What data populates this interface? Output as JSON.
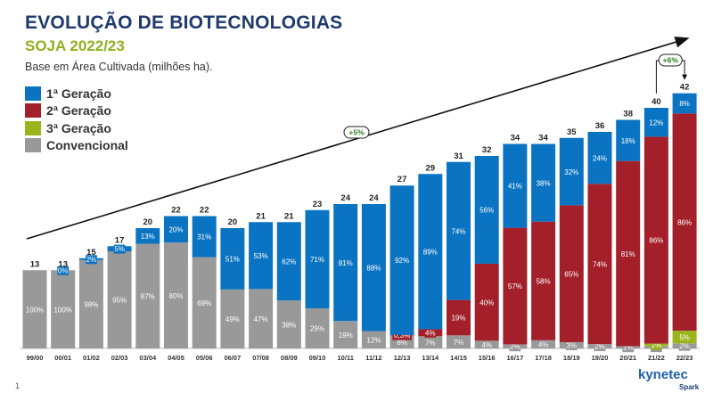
{
  "slide": {
    "title": "EVOLUÇÃO DE BIOTECNOLOGIAS",
    "subtitle": "SOJA 2022/23",
    "note": "Base em Área Cultivada (milhões ha).",
    "page_number": "1",
    "brand": "kynetec",
    "brand_sub": "Spark"
  },
  "colors": {
    "primeira": "#0a74c2",
    "segunda": "#a3202a",
    "terceira": "#9ab51b",
    "convencional": "#999999",
    "title": "#1f3a6e",
    "subtitle": "#8fb01e"
  },
  "chart_data": {
    "type": "bar",
    "stacked": true,
    "categories": [
      "99/00",
      "00/01",
      "01/02",
      "02/03",
      "03/04",
      "04/05",
      "05/06",
      "06/07",
      "07/08",
      "08/09",
      "09/10",
      "10/11",
      "11/12",
      "12/13",
      "13/14",
      "14/15",
      "15/16",
      "16/17",
      "17/18",
      "18/19",
      "19/20",
      "20/21",
      "21/22",
      "22/23"
    ],
    "totals": [
      13,
      13,
      15,
      17,
      20,
      22,
      22,
      20,
      21,
      21,
      23,
      24,
      24,
      27,
      29,
      31,
      32,
      34,
      34,
      35,
      36,
      38,
      40,
      42
    ],
    "ylabel": "",
    "series": [
      {
        "name": "Convencional",
        "color_key": "convencional",
        "values": [
          13,
          13,
          14.7,
          16.15,
          17.4,
          17.6,
          15.18,
          9.8,
          9.87,
          7.98,
          6.67,
          4.56,
          2.88,
          2.16,
          2.03,
          2.17,
          1.28,
          0.68,
          1.36,
          1.05,
          0.72,
          0.38,
          0.4,
          0.84
        ],
        "labels": [
          "100%",
          "100%",
          "98%",
          "95%",
          "87%",
          "80%",
          "69%",
          "49%",
          "47%",
          "38%",
          "29%",
          "19%",
          "12%",
          "8%",
          "7%",
          "7%",
          "4%",
          "2%",
          "4%",
          "3%",
          "2%",
          "1%",
          "1%",
          "2%"
        ]
      },
      {
        "name": "3ª Geração",
        "color_key": "terceira",
        "values": [
          0,
          0,
          0,
          0,
          0,
          0,
          0,
          0,
          0,
          0,
          0,
          0,
          0,
          0,
          0,
          0,
          0,
          0,
          0,
          0,
          0,
          0,
          0.4,
          2.1
        ],
        "labels": [
          "",
          "",
          "",
          "",
          "",
          "",
          "",
          "",
          "",
          "",
          "",
          "",
          "",
          "",
          "",
          "",
          "",
          "",
          "",
          "",
          "",
          "",
          "1%",
          "5%"
        ]
      },
      {
        "name": "2ª Geração",
        "color_key": "segunda",
        "values": [
          0,
          0,
          0,
          0,
          0,
          0,
          0,
          0,
          0,
          0,
          0,
          0,
          0,
          0.08,
          1.16,
          5.89,
          12.8,
          19.38,
          19.72,
          22.75,
          26.64,
          30.78,
          34.4,
          36.12
        ],
        "labels": [
          "",
          "",
          "",
          "",
          "",
          "",
          "",
          "",
          "",
          "",
          "",
          "",
          "",
          "0,3%",
          "4%",
          "19%",
          "40%",
          "57%",
          "58%",
          "65%",
          "74%",
          "81%",
          "86%",
          "86%"
        ]
      },
      {
        "name": "1ª Geração",
        "color_key": "primeira",
        "values": [
          0,
          0,
          0.3,
          0.85,
          2.6,
          4.4,
          6.82,
          10.2,
          11.13,
          13.02,
          16.33,
          19.44,
          21.12,
          24.84,
          25.81,
          22.94,
          17.92,
          13.94,
          12.92,
          11.2,
          8.64,
          6.84,
          4.8,
          3.36
        ],
        "labels": [
          "",
          "0%",
          "2%",
          "5%",
          "13%",
          "20%",
          "31%",
          "51%",
          "53%",
          "62%",
          "71%",
          "81%",
          "88%",
          "92%",
          "89%",
          "74%",
          "56%",
          "41%",
          "38%",
          "32%",
          "24%",
          "18%",
          "12%",
          "8%"
        ]
      }
    ],
    "annotations": [
      {
        "text": "+5%",
        "kind": "trend-arrow"
      },
      {
        "text": "+6%",
        "kind": "yoy-badge",
        "from": "21/22",
        "to": "22/23"
      }
    ],
    "legend_position": "top-left",
    "grid": false
  }
}
